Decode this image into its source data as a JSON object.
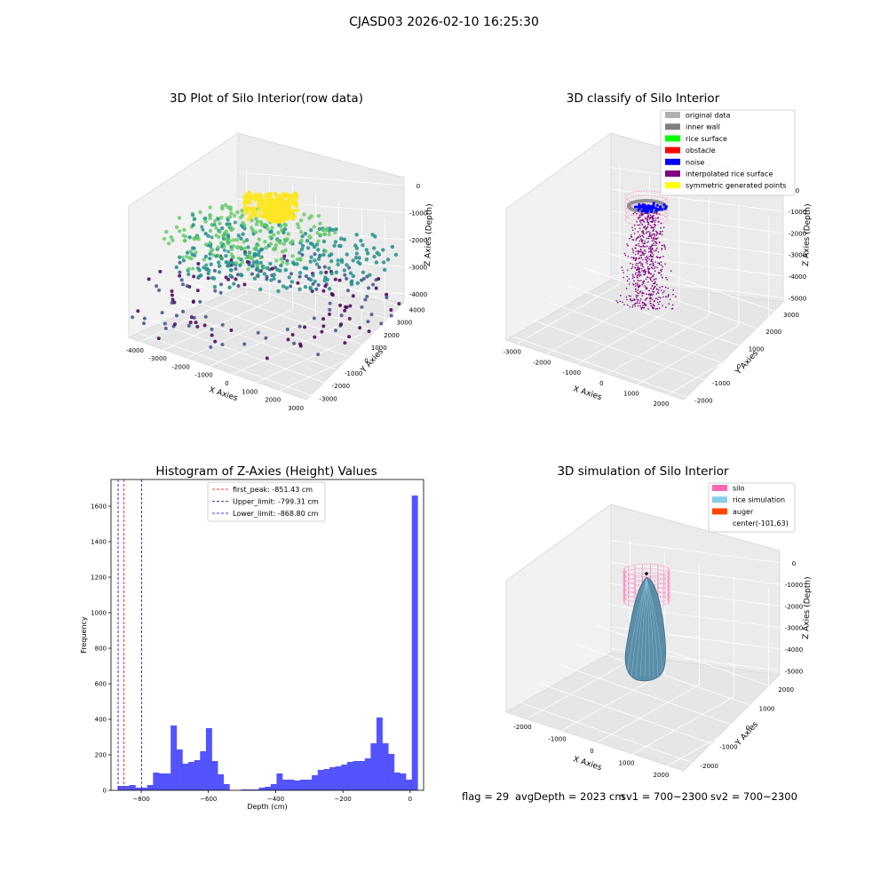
{
  "figure": {
    "suptitle": "CJASD03 2026-02-10 16:25:30"
  },
  "panels": {
    "raw": {
      "title": "3D Plot of Silo Interior(row data)",
      "xlabel": "X Axies",
      "ylabel": "Y Axies",
      "zlabel": "Z Axies (Depth)",
      "xticks": [
        "-4000",
        "-3000",
        "-2000",
        "-1000",
        "0",
        "1000",
        "2000",
        "3000"
      ],
      "yticks": [
        "-3000",
        "-2000",
        "-1000",
        "0",
        "1000",
        "2000",
        "3000",
        "4000"
      ],
      "zticks": [
        "0",
        "-1000",
        "-2000",
        "-3000",
        "-4000"
      ],
      "colormap": [
        "#440154",
        "#3b528b",
        "#21918c",
        "#5ec962",
        "#fde725"
      ]
    },
    "classify": {
      "title": "3D classify of Silo Interior",
      "xlabel": "X Axies",
      "ylabel": "Y Axies",
      "zlabel": "Z Axies (Depth)",
      "xticks": [
        "-3000",
        "-2000",
        "-1000",
        "0",
        "1000",
        "2000"
      ],
      "yticks": [
        "-2000",
        "-1000",
        "0",
        "1000",
        "2000",
        "3000"
      ],
      "zticks": [
        "0",
        "-1000",
        "-2000",
        "-3000",
        "-4000",
        "-5000"
      ],
      "legend": [
        {
          "label": "original data",
          "color": "#b0b0b0"
        },
        {
          "label": "inner wall",
          "color": "#808080"
        },
        {
          "label": "rice surface",
          "color": "#00ff00"
        },
        {
          "label": "obstacle",
          "color": "#ff0000"
        },
        {
          "label": "noise",
          "color": "#0000ff"
        },
        {
          "label": "interpolated rice surface",
          "color": "#800080"
        },
        {
          "label": "symmetric generated points",
          "color": "#ffff00"
        }
      ]
    },
    "simulation": {
      "title": "3D simulation of Silo Interior",
      "xlabel": "X Axies",
      "ylabel": "Y Axies",
      "zlabel": "Z Axies (Depth)",
      "xticks": [
        "-2000",
        "-1000",
        "0",
        "1000",
        "2000"
      ],
      "yticks": [
        "-2000",
        "-1000",
        "0",
        "1000",
        "2000"
      ],
      "zticks": [
        "0",
        "-1000",
        "-2000",
        "-3000",
        "-4000",
        "-5000"
      ],
      "legend": [
        {
          "label": "silo",
          "color": "#ff69b4"
        },
        {
          "label": "rice simulation",
          "color": "#87ceeb"
        },
        {
          "label": "auger",
          "color": "#ff4500"
        },
        {
          "label": "center(-101,63)",
          "color": ""
        }
      ],
      "footer": {
        "flag": "flag = 29",
        "avg": "avgDepth = 2023 cm",
        "sv1": "sv1 = 700~2300",
        "sv2": "sv2 = 700~2300"
      }
    }
  },
  "chart_data": [
    {
      "type": "scatter",
      "title": "3D Plot of Silo Interior(row data)",
      "xlabel": "X Axies",
      "ylabel": "Y Axies",
      "zlabel": "Z Axies (Depth)",
      "xlim": [
        -4000,
        3000
      ],
      "ylim": [
        -3000,
        4000
      ],
      "zlim": [
        -4500,
        0
      ]
    },
    {
      "type": "scatter",
      "title": "3D classify of Silo Interior",
      "xlabel": "X Axies",
      "ylabel": "Y Axies",
      "zlabel": "Z Axies (Depth)",
      "xlim": [
        -3000,
        2500
      ],
      "ylim": [
        -2500,
        3000
      ],
      "zlim": [
        -5500,
        0
      ],
      "series": [
        {
          "name": "original data"
        },
        {
          "name": "inner wall"
        },
        {
          "name": "rice surface"
        },
        {
          "name": "obstacle"
        },
        {
          "name": "noise"
        },
        {
          "name": "interpolated rice surface"
        },
        {
          "name": "symmetric generated points"
        }
      ]
    },
    {
      "type": "bar",
      "title": "Histogram of Z-Axies (Height) Values",
      "xlabel": "Depth (cm)",
      "ylabel": "Frequency",
      "xlim": [
        -890,
        40
      ],
      "ylim": [
        0,
        1750
      ],
      "xticks": [
        -800,
        -600,
        -400,
        -200,
        0
      ],
      "yticks": [
        0,
        200,
        400,
        600,
        800,
        1000,
        1200,
        1400,
        1600
      ],
      "bin_start": -870,
      "bin_width": 17.5,
      "values": [
        25,
        25,
        30,
        15,
        15,
        30,
        100,
        95,
        95,
        365,
        230,
        150,
        160,
        170,
        220,
        350,
        165,
        90,
        35,
        0,
        0,
        5,
        5,
        5,
        15,
        20,
        35,
        95,
        60,
        60,
        55,
        60,
        60,
        85,
        115,
        120,
        130,
        135,
        145,
        160,
        165,
        165,
        180,
        265,
        410,
        265,
        205,
        100,
        95,
        60,
        1660
      ],
      "vlines": [
        {
          "label": "first_peak: -851.43 cm",
          "x": -851.43,
          "color": "#ff0000"
        },
        {
          "label": "Upper_limit: -799.31 cm",
          "x": -799.31,
          "color": "#00008b"
        },
        {
          "label": "Lower_limit: -868.80 cm",
          "x": -868.8,
          "color": "#0000ff"
        }
      ],
      "bar_color": "#4b4bff"
    },
    {
      "type": "surface",
      "title": "3D simulation of Silo Interior",
      "xlabel": "X Axies",
      "ylabel": "Y Axies",
      "zlabel": "Z Axies (Depth)",
      "xlim": [
        -2500,
        2500
      ],
      "ylim": [
        -2500,
        2500
      ],
      "zlim": [
        -5500,
        0
      ],
      "series": [
        {
          "name": "silo"
        },
        {
          "name": "rice simulation"
        },
        {
          "name": "auger"
        },
        {
          "name": "center(-101,63)"
        }
      ]
    }
  ]
}
